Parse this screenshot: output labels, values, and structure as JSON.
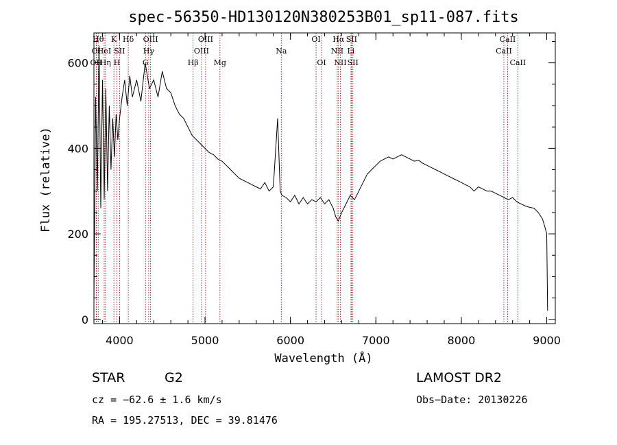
{
  "chart_data": {
    "type": "line",
    "title": "spec-56350-HD130120N380253B01_sp11-087.fits",
    "xlabel": "Wavelength (Å)",
    "ylabel": "Flux (relative)",
    "xlim": [
      3700,
      9100
    ],
    "ylim": [
      -10,
      670
    ],
    "x_ticks": [
      4000,
      5000,
      6000,
      7000,
      8000,
      9000
    ],
    "y_ticks": [
      0,
      200,
      400,
      600
    ],
    "grid": false,
    "series": [
      {
        "x": [
          3700,
          3720,
          3740,
          3760,
          3780,
          3800,
          3820,
          3840,
          3860,
          3880,
          3900,
          3920,
          3940,
          3960,
          3980,
          4000,
          4030,
          4060,
          4090,
          4120,
          4150,
          4200,
          4250,
          4300,
          4350,
          4400,
          4450,
          4500,
          4550,
          4600,
          4650,
          4700,
          4750,
          4800,
          4850,
          4900,
          4950,
          5000,
          5050,
          5100,
          5150,
          5200,
          5250,
          5300,
          5350,
          5400,
          5450,
          5500,
          5550,
          5600,
          5650,
          5700,
          5750,
          5800,
          5850,
          5880,
          5900,
          5950,
          6000,
          6050,
          6100,
          6150,
          6200,
          6250,
          6300,
          6350,
          6400,
          6450,
          6500,
          6530,
          6560,
          6600,
          6650,
          6700,
          6750,
          6800,
          6850,
          6900,
          6950,
          7000,
          7050,
          7100,
          7150,
          7200,
          7250,
          7300,
          7350,
          7400,
          7450,
          7500,
          7550,
          7600,
          7650,
          7700,
          7750,
          7800,
          7850,
          7900,
          7950,
          8000,
          8050,
          8100,
          8150,
          8200,
          8250,
          8300,
          8350,
          8400,
          8450,
          8500,
          8550,
          8600,
          8650,
          8700,
          8750,
          8800,
          8850,
          8900,
          8950,
          8980,
          9000,
          9010
        ],
        "y": [
          40,
          520,
          300,
          640,
          260,
          560,
          280,
          540,
          300,
          500,
          350,
          470,
          380,
          480,
          420,
          470,
          520,
          560,
          500,
          570,
          520,
          560,
          510,
          600,
          540,
          560,
          520,
          580,
          540,
          530,
          500,
          480,
          470,
          450,
          430,
          420,
          410,
          400,
          390,
          385,
          375,
          370,
          360,
          350,
          340,
          330,
          325,
          320,
          315,
          310,
          305,
          320,
          300,
          310,
          470,
          300,
          290,
          285,
          275,
          290,
          270,
          285,
          270,
          280,
          275,
          285,
          270,
          280,
          260,
          240,
          230,
          250,
          270,
          290,
          280,
          300,
          320,
          340,
          350,
          360,
          370,
          375,
          380,
          375,
          380,
          385,
          380,
          375,
          370,
          372,
          365,
          360,
          355,
          350,
          345,
          340,
          335,
          330,
          325,
          320,
          315,
          310,
          300,
          310,
          305,
          300,
          300,
          295,
          290,
          285,
          280,
          285,
          275,
          270,
          265,
          262,
          260,
          250,
          235,
          215,
          200,
          20
        ]
      }
    ],
    "spectral_lines": [
      {
        "label": "OII",
        "wl": 3727,
        "row": 3
      },
      {
        "label": "Hθ",
        "wl": 3750,
        "row": 1
      },
      {
        "label": "OI",
        "wl": 3727,
        "row": 2
      },
      {
        "label": "HeI",
        "wl": 3820,
        "row": 2
      },
      {
        "label": "Hη",
        "wl": 3835,
        "row": 3
      },
      {
        "label": "K",
        "wl": 3934,
        "row": 1
      },
      {
        "label": "H",
        "wl": 3969,
        "row": 3
      },
      {
        "label": "SII",
        "wl": 4000,
        "row": 2
      },
      {
        "label": "Hδ",
        "wl": 4102,
        "row": 1
      },
      {
        "label": "OIII",
        "wl": 4363,
        "row": 1
      },
      {
        "label": "Hγ",
        "wl": 4341,
        "row": 2
      },
      {
        "label": "G",
        "wl": 4304,
        "row": 3
      },
      {
        "label": "OIII",
        "wl": 5007,
        "row": 1
      },
      {
        "label": "OIII",
        "wl": 4959,
        "row": 2
      },
      {
        "label": "Hβ",
        "wl": 4861,
        "row": 3
      },
      {
        "label": "Mg",
        "wl": 5175,
        "row": 3
      },
      {
        "label": "Na",
        "wl": 5893,
        "row": 2
      },
      {
        "label": "OI",
        "wl": 6300,
        "row": 1
      },
      {
        "label": "OI",
        "wl": 6364,
        "row": 3
      },
      {
        "label": "Hα",
        "wl": 6563,
        "row": 1
      },
      {
        "label": "SII",
        "wl": 6716,
        "row": 1
      },
      {
        "label": "NII",
        "wl": 6548,
        "row": 2
      },
      {
        "label": "Li",
        "wl": 6708,
        "row": 2
      },
      {
        "label": "NII",
        "wl": 6584,
        "row": 3
      },
      {
        "label": "SII",
        "wl": 6731,
        "row": 3
      },
      {
        "label": "CaII",
        "wl": 8542,
        "row": 1
      },
      {
        "label": "CaII",
        "wl": 8498,
        "row": 2
      },
      {
        "label": "CaII",
        "wl": 8662,
        "row": 3
      }
    ]
  },
  "info": {
    "object_class": "STAR",
    "subclass": "G2",
    "survey": "LAMOST DR2",
    "cz": "cz = −62.6 ± 1.6 km/s",
    "obs_date": "Obs−Date: 20130226",
    "coords": "RA = 195.27513, DEC =  39.81476"
  },
  "colors": {
    "spectrum": "#000000",
    "line_markers": "#8b0000"
  }
}
